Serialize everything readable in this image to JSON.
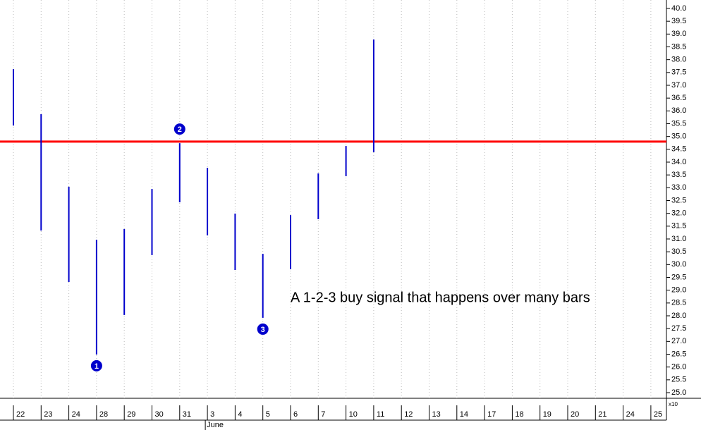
{
  "chart_data": {
    "type": "range",
    "annotation": "A 1-2-3 buy signal that happens over many bars",
    "categories": [
      "22",
      "23",
      "24",
      "28",
      "29",
      "30",
      "31",
      "3",
      "4",
      "5",
      "6",
      "7",
      "10",
      "11",
      "12",
      "13",
      "14",
      "17",
      "18",
      "19",
      "20",
      "21",
      "24",
      "25"
    ],
    "x_sublabels": [
      null,
      null,
      null,
      null,
      null,
      null,
      null,
      "June",
      null,
      null,
      null,
      null,
      null,
      null,
      null,
      null,
      null,
      null,
      null,
      null,
      null,
      null,
      null,
      null
    ],
    "highs": [
      37.63,
      35.87,
      33.04,
      30.97,
      31.39,
      32.95,
      34.74,
      33.78,
      31.99,
      30.42,
      31.93,
      33.56,
      34.63,
      38.79,
      null,
      null,
      null,
      null,
      null,
      null,
      null,
      null,
      null,
      null
    ],
    "lows": [
      35.43,
      31.33,
      29.32,
      26.49,
      28.03,
      30.37,
      32.43,
      31.14,
      29.79,
      27.92,
      29.82,
      31.77,
      33.45,
      34.39,
      null,
      null,
      null,
      null,
      null,
      null,
      null,
      null,
      null,
      null
    ],
    "color": "#0000cc",
    "signal_labels": [
      null,
      null,
      null,
      "1",
      null,
      null,
      "2",
      null,
      null,
      "3",
      null,
      null,
      null,
      null,
      null,
      null,
      null,
      null,
      null,
      null,
      null,
      null,
      null,
      null
    ],
    "signal_sides": [
      null,
      null,
      null,
      "low",
      null,
      null,
      "high",
      null,
      null,
      "low",
      null,
      null,
      null,
      null,
      null,
      null,
      null,
      null,
      null,
      null,
      null,
      null,
      null,
      null
    ],
    "signal_color": "#0000cc",
    "reference_line": 34.8,
    "reference_color": "#ff0000",
    "ylim": [
      24.78,
      40.33
    ],
    "yticks": [
      {
        "value": 25,
        "label": "25.0"
      },
      25.5,
      {
        "value": 26,
        "label": "26.0"
      },
      26.5,
      {
        "value": 27,
        "label": "27.0"
      },
      27.5,
      {
        "value": 28,
        "label": "28.0"
      },
      28.5,
      {
        "value": 29,
        "label": "29.0"
      },
      29.5,
      {
        "value": 30,
        "label": "30.0"
      },
      30.5,
      {
        "value": 31,
        "label": "31.0"
      },
      31.5,
      {
        "value": 32,
        "label": "32.0"
      },
      32.5,
      {
        "value": 33,
        "label": "33.0"
      },
      33.5,
      {
        "value": 34,
        "label": "34.0"
      },
      34.5,
      {
        "value": 35,
        "label": "35.0"
      },
      35.5,
      {
        "value": 36,
        "label": "36.0"
      },
      36.5,
      {
        "value": 37,
        "label": "37.0"
      },
      37.5,
      {
        "value": 38,
        "label": "38.0"
      },
      38.5,
      {
        "value": 39,
        "label": "39.0"
      },
      39.5,
      {
        "value": 40,
        "label": "40.0"
      }
    ],
    "y_axis_multiplier": "x10",
    "grid": true
  }
}
